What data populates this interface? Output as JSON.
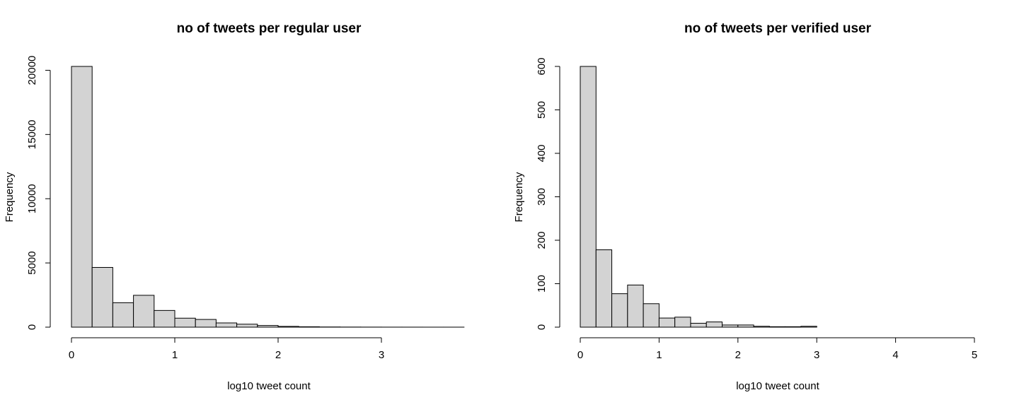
{
  "chart_data": [
    {
      "type": "bar",
      "title": "no of tweets per regular user",
      "xlabel": "log10 tweet count",
      "ylabel": "Frequency",
      "xlim": [
        0,
        3.8
      ],
      "ylim": [
        0,
        20300
      ],
      "xticks": [
        0,
        1,
        2,
        3
      ],
      "yticks": [
        0,
        5000,
        10000,
        15000,
        20000
      ],
      "bin_width": 0.2,
      "values": [
        20300,
        4650,
        1900,
        2480,
        1300,
        700,
        600,
        330,
        230,
        130,
        60,
        30,
        15,
        8,
        5,
        3,
        2,
        1,
        1
      ],
      "grid": false,
      "bar_color": "#d3d3d3"
    },
    {
      "type": "bar",
      "title": "no of tweets per verified user",
      "xlabel": "log10 tweet count",
      "ylabel": "Frequency",
      "xlim": [
        0,
        5
      ],
      "ylim": [
        0,
        600
      ],
      "xticks": [
        0,
        1,
        2,
        3,
        4,
        5
      ],
      "yticks": [
        0,
        100,
        200,
        300,
        400,
        500,
        600
      ],
      "bin_width": 0.2,
      "values": [
        600,
        178,
        77,
        97,
        54,
        21,
        23,
        9,
        12,
        5,
        5,
        2,
        1,
        1,
        2
      ],
      "grid": false,
      "bar_color": "#d3d3d3"
    }
  ]
}
